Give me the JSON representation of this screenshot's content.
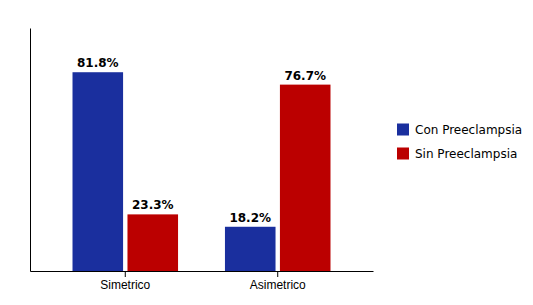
{
  "chart_data": {
    "type": "bar",
    "categories": [
      "Simetrico",
      "Asimetrico"
    ],
    "series": [
      {
        "name": "Con Preeclampsia",
        "color": "#1A2F9E",
        "values": [
          81.8,
          18.2
        ],
        "value_labels": [
          "81.8%",
          "18.2%"
        ]
      },
      {
        "name": "Sin Preeclampsia",
        "color": "#BB0000",
        "values": [
          23.3,
          76.7
        ],
        "value_labels": [
          "23.3%",
          "76.7%"
        ]
      }
    ],
    "ylim": [
      0,
      100
    ],
    "data_labels": true,
    "tick_labels": "x",
    "legend": "right"
  }
}
